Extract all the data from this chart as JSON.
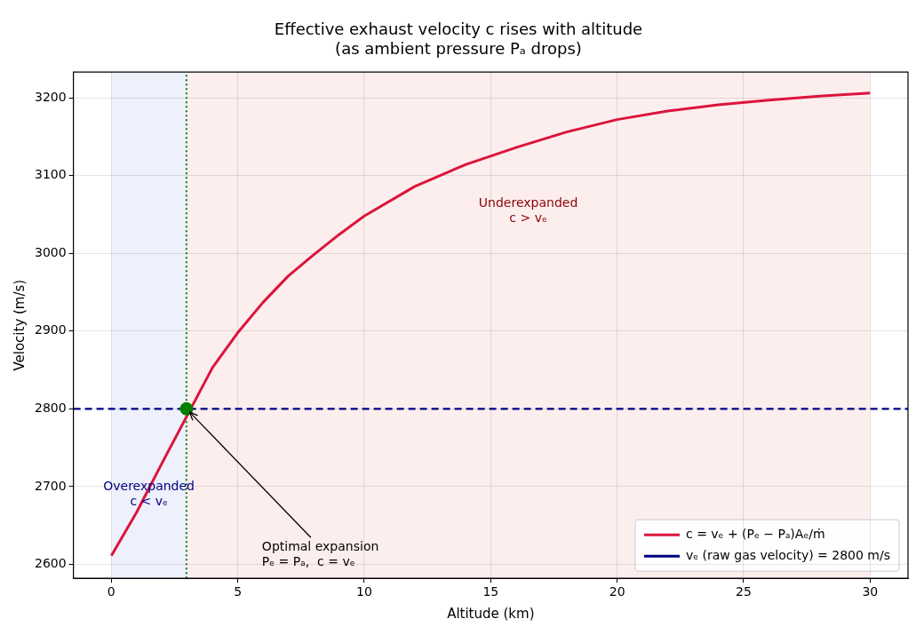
{
  "chart_data": {
    "type": "line",
    "title": "Effective exhaust velocity c rises with altitude\n(as ambient pressure Pₐ drops)",
    "xlabel": "Altitude (km)",
    "ylabel": "Velocity (m/s)",
    "x": [
      0,
      1,
      2,
      4,
      5,
      6,
      7,
      8,
      9,
      10,
      12,
      14,
      16,
      18,
      20,
      22,
      24,
      26,
      28,
      30
    ],
    "series": [
      {
        "name": "c = vₑ + (Pₑ − Pₐ)Aₑ/ṁ",
        "color": "#dc143c",
        "values": [
          2611,
          2667,
          2730,
          2853,
          2898,
          2937,
          2971,
          2998,
          3024,
          3048,
          3086,
          3114,
          3136,
          3156,
          3172,
          3183,
          3191,
          3197,
          3202,
          3206
        ]
      },
      {
        "type": "scatter",
        "color": "#008000",
        "x": [
          2.97
        ],
        "values": [
          2800
        ]
      }
    ],
    "xlim": [
      -1.5,
      31.5
    ],
    "ylim": [
      2582,
      3233
    ],
    "xticks": [
      0,
      5,
      10,
      15,
      20,
      25,
      30
    ],
    "yticks": [
      2600,
      2700,
      2800,
      2900,
      3000,
      3100,
      3200
    ],
    "ref_lines": [
      {
        "axis": "y",
        "value": 2800,
        "label": "vₑ (raw gas velocity) = 2800 m/s",
        "color": "#000080",
        "line_style": "dashed"
      },
      {
        "axis": "x",
        "value": 2.97,
        "color": "#008000",
        "line_style": "dotted"
      }
    ],
    "bands": [
      {
        "axis": "x",
        "from": 0,
        "to": 2.97,
        "label": "Overexpanded\nc < vₑ",
        "color": "#eef0fc"
      },
      {
        "axis": "x",
        "from": 2.97,
        "to": 30,
        "label": "Underexpanded\nc > vₑ",
        "color": "#fdeeee"
      }
    ],
    "annotations": [
      {
        "text": "Optimal expansion\nPₑ = Pₐ,  c = vₑ",
        "x": 2.97,
        "y": 2800
      }
    ],
    "grid": true,
    "legend": "bottom right",
    "line_style": "solid"
  }
}
